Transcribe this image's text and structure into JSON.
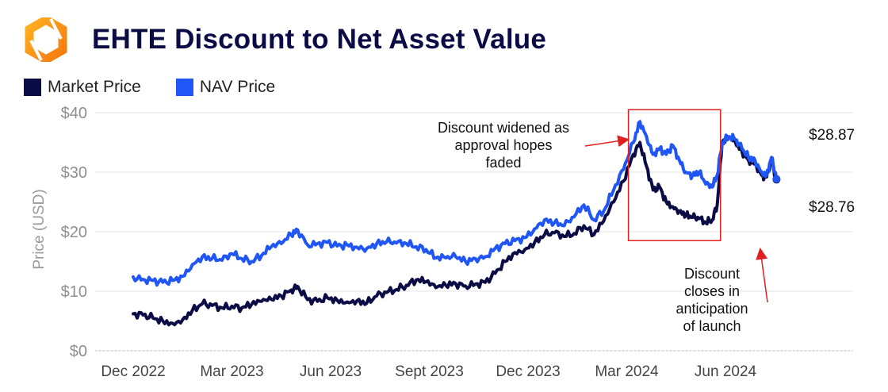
{
  "colors": {
    "market": "#0b0b45",
    "nav": "#2056f5",
    "highlight": "#e02020",
    "arrow": "#e02020",
    "axis": "#8f8f8f"
  },
  "logo": {
    "icon": "hexagon-logo-icon"
  },
  "chart_data": {
    "type": "line",
    "title": "EHTE Discount to Net Asset Value",
    "xlabel": "",
    "ylabel": "Price (USD)",
    "ylim": [
      0,
      40
    ],
    "yticks": [
      0,
      10,
      20,
      30,
      40
    ],
    "ytick_labels": [
      "$0",
      "$10",
      "$20",
      "$30",
      "$40"
    ],
    "xlim": [
      0,
      20.5
    ],
    "xticks": [
      0,
      3,
      6,
      9,
      12,
      15,
      18
    ],
    "xtick_labels": [
      "Dec 2022",
      "Mar 2023",
      "Jun 2023",
      "Sept 2023",
      "Dec 2023",
      "Mar 2024",
      "Jun 2024"
    ],
    "legend_position": "top-left",
    "series": [
      {
        "name": "Market Price",
        "points": [
          [
            0.0,
            6.2
          ],
          [
            0.3,
            6.0
          ],
          [
            0.6,
            5.5
          ],
          [
            0.9,
            5.0
          ],
          [
            1.2,
            4.6
          ],
          [
            1.5,
            5.2
          ],
          [
            1.8,
            6.8
          ],
          [
            2.1,
            7.9
          ],
          [
            2.4,
            7.6
          ],
          [
            2.7,
            7.2
          ],
          [
            3.0,
            7.5
          ],
          [
            3.3,
            7.2
          ],
          [
            3.6,
            7.8
          ],
          [
            3.9,
            8.3
          ],
          [
            4.2,
            8.6
          ],
          [
            4.5,
            9.2
          ],
          [
            4.8,
            10.2
          ],
          [
            5.0,
            10.8
          ],
          [
            5.3,
            8.6
          ],
          [
            5.6,
            8.3
          ],
          [
            5.9,
            8.9
          ],
          [
            6.2,
            8.5
          ],
          [
            6.5,
            8.2
          ],
          [
            6.8,
            8.4
          ],
          [
            7.1,
            8.0
          ],
          [
            7.4,
            9.2
          ],
          [
            7.7,
            9.8
          ],
          [
            8.0,
            10.3
          ],
          [
            8.3,
            11.0
          ],
          [
            8.6,
            11.9
          ],
          [
            8.9,
            11.6
          ],
          [
            9.2,
            10.6
          ],
          [
            9.5,
            11.0
          ],
          [
            9.8,
            11.3
          ],
          [
            10.1,
            10.9
          ],
          [
            10.4,
            11.2
          ],
          [
            10.7,
            11.5
          ],
          [
            11.0,
            13.0
          ],
          [
            11.3,
            15.0
          ],
          [
            11.6,
            16.5
          ],
          [
            11.9,
            17.0
          ],
          [
            12.2,
            18.2
          ],
          [
            12.5,
            19.5
          ],
          [
            12.8,
            19.8
          ],
          [
            13.1,
            19.2
          ],
          [
            13.4,
            19.7
          ],
          [
            13.7,
            21.0
          ],
          [
            14.0,
            19.5
          ],
          [
            14.3,
            21.8
          ],
          [
            14.6,
            25.0
          ],
          [
            14.9,
            28.5
          ],
          [
            15.2,
            33.0
          ],
          [
            15.4,
            35.0
          ],
          [
            15.6,
            31.0
          ],
          [
            15.8,
            27.0
          ],
          [
            16.0,
            27.5
          ],
          [
            16.2,
            25.0
          ],
          [
            16.4,
            24.2
          ],
          [
            16.6,
            23.5
          ],
          [
            16.8,
            22.8
          ],
          [
            17.0,
            22.4
          ],
          [
            17.2,
            22.2
          ],
          [
            17.4,
            21.5
          ],
          [
            17.6,
            22.0
          ],
          [
            17.75,
            24.5
          ],
          [
            17.9,
            35.0
          ],
          [
            18.1,
            35.8
          ],
          [
            18.3,
            35.0
          ],
          [
            18.5,
            33.5
          ],
          [
            18.7,
            32.0
          ],
          [
            18.9,
            31.5
          ],
          [
            19.1,
            29.5
          ],
          [
            19.25,
            29.2
          ],
          [
            19.4,
            32.0
          ],
          [
            19.55,
            28.76
          ]
        ]
      },
      {
        "name": "NAV Price",
        "points": [
          [
            0.0,
            12.4
          ],
          [
            0.3,
            12.0
          ],
          [
            0.6,
            11.8
          ],
          [
            0.9,
            11.5
          ],
          [
            1.2,
            11.8
          ],
          [
            1.5,
            12.5
          ],
          [
            1.8,
            14.5
          ],
          [
            2.1,
            15.8
          ],
          [
            2.4,
            15.5
          ],
          [
            2.7,
            15.2
          ],
          [
            3.0,
            16.3
          ],
          [
            3.3,
            15.5
          ],
          [
            3.6,
            15.0
          ],
          [
            3.9,
            16.0
          ],
          [
            4.2,
            17.5
          ],
          [
            4.5,
            18.0
          ],
          [
            4.8,
            19.5
          ],
          [
            5.0,
            20.3
          ],
          [
            5.3,
            17.8
          ],
          [
            5.6,
            18.0
          ],
          [
            5.9,
            18.2
          ],
          [
            6.2,
            17.6
          ],
          [
            6.5,
            17.8
          ],
          [
            6.8,
            17.4
          ],
          [
            7.1,
            17.2
          ],
          [
            7.4,
            18.0
          ],
          [
            7.7,
            18.3
          ],
          [
            8.0,
            18.1
          ],
          [
            8.3,
            18.0
          ],
          [
            8.6,
            17.5
          ],
          [
            8.9,
            17.0
          ],
          [
            9.2,
            15.6
          ],
          [
            9.5,
            15.6
          ],
          [
            9.8,
            15.8
          ],
          [
            10.1,
            15.0
          ],
          [
            10.4,
            15.5
          ],
          [
            10.7,
            15.8
          ],
          [
            11.0,
            17.2
          ],
          [
            11.3,
            18.0
          ],
          [
            11.6,
            18.5
          ],
          [
            11.9,
            19.0
          ],
          [
            12.2,
            20.5
          ],
          [
            12.5,
            22.0
          ],
          [
            12.8,
            21.5
          ],
          [
            13.1,
            21.0
          ],
          [
            13.4,
            22.5
          ],
          [
            13.7,
            24.5
          ],
          [
            14.0,
            22.0
          ],
          [
            14.3,
            23.5
          ],
          [
            14.6,
            27.0
          ],
          [
            14.9,
            30.5
          ],
          [
            15.2,
            35.0
          ],
          [
            15.4,
            38.5
          ],
          [
            15.6,
            36.0
          ],
          [
            15.8,
            33.0
          ],
          [
            16.0,
            34.0
          ],
          [
            16.2,
            33.0
          ],
          [
            16.4,
            34.5
          ],
          [
            16.6,
            32.0
          ],
          [
            16.8,
            30.0
          ],
          [
            17.0,
            29.5
          ],
          [
            17.2,
            30.0
          ],
          [
            17.4,
            28.0
          ],
          [
            17.6,
            27.5
          ],
          [
            17.75,
            29.5
          ],
          [
            17.9,
            35.0
          ],
          [
            18.1,
            36.0
          ],
          [
            18.3,
            35.5
          ],
          [
            18.5,
            34.0
          ],
          [
            18.7,
            32.5
          ],
          [
            18.9,
            32.0
          ],
          [
            19.1,
            30.0
          ],
          [
            19.25,
            29.5
          ],
          [
            19.4,
            32.5
          ],
          [
            19.55,
            28.87
          ]
        ]
      }
    ],
    "highlight_range": {
      "x": [
        15.05,
        17.85
      ],
      "y": [
        18.5,
        40.5
      ]
    },
    "annotations": [
      {
        "lines": [
          "Discount widened as",
          "approval hopes",
          "faded"
        ],
        "arrow_to": [
          15.1,
          35.5
        ]
      },
      {
        "lines": [
          "Discount",
          "closes in",
          "anticipation",
          "of launch"
        ],
        "arrow_to": [
          19.2,
          19.0
        ]
      }
    ],
    "end_labels": {
      "nav": "$28.87",
      "market": "$28.76"
    }
  }
}
